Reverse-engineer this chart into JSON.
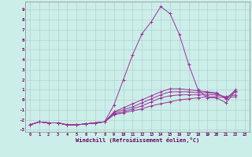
{
  "xlabel": "Windchill (Refroidissement éolien,°C)",
  "background_color": "#cceee8",
  "grid_color": "#aacccc",
  "line_color": "#993399",
  "xlim": [
    -0.5,
    23.5
  ],
  "ylim": [
    -3.2,
    9.8
  ],
  "xticks": [
    0,
    1,
    2,
    3,
    4,
    5,
    6,
    7,
    8,
    9,
    10,
    11,
    12,
    13,
    14,
    15,
    16,
    17,
    18,
    19,
    20,
    21,
    22,
    23
  ],
  "yticks": [
    -3,
    -2,
    -1,
    0,
    1,
    2,
    3,
    4,
    5,
    6,
    7,
    8,
    9
  ],
  "series": [
    [
      -2.5,
      -2.2,
      -2.3,
      -2.3,
      -2.5,
      -2.5,
      -2.4,
      -2.3,
      -2.2,
      -0.5,
      2.0,
      4.5,
      6.6,
      7.8,
      9.3,
      8.6,
      6.5,
      3.5,
      1.0,
      0.2,
      0.2,
      -0.3,
      0.9,
      null
    ],
    [
      -2.5,
      -2.2,
      -2.3,
      -2.3,
      -2.5,
      -2.5,
      -2.4,
      -2.3,
      -2.2,
      -1.5,
      -1.3,
      -1.1,
      -0.9,
      -0.6,
      -0.4,
      -0.2,
      0.0,
      0.1,
      0.2,
      0.3,
      0.3,
      0.2,
      0.3,
      null
    ],
    [
      -2.5,
      -2.2,
      -2.3,
      -2.3,
      -2.5,
      -2.5,
      -2.4,
      -2.3,
      -2.2,
      -1.4,
      -1.2,
      -0.9,
      -0.6,
      -0.2,
      0.2,
      0.4,
      0.5,
      0.5,
      0.5,
      0.5,
      0.5,
      0.3,
      0.5,
      null
    ],
    [
      -2.5,
      -2.2,
      -2.3,
      -2.3,
      -2.5,
      -2.5,
      -2.4,
      -2.3,
      -2.2,
      -1.3,
      -1.0,
      -0.7,
      -0.3,
      0.1,
      0.5,
      0.8,
      0.8,
      0.8,
      0.7,
      0.7,
      0.6,
      0.2,
      0.8,
      null
    ],
    [
      -2.5,
      -2.2,
      -2.3,
      -2.3,
      -2.5,
      -2.5,
      -2.4,
      -2.3,
      -2.2,
      -1.2,
      -0.8,
      -0.4,
      0.0,
      0.4,
      0.8,
      1.1,
      1.1,
      1.0,
      0.9,
      0.8,
      0.7,
      0.1,
      1.0,
      null
    ]
  ]
}
